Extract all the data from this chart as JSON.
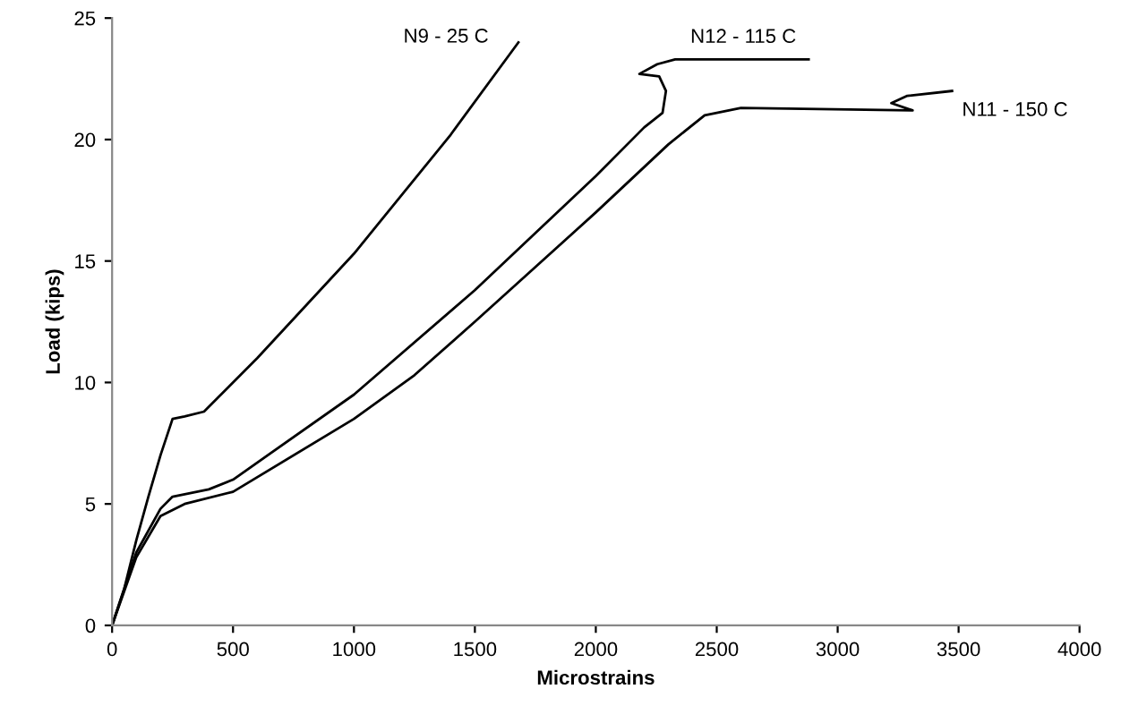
{
  "chart_data": {
    "type": "line",
    "xlabel": "Microstrains",
    "ylabel": "Load (kips)",
    "xlim": [
      0,
      4000
    ],
    "ylim": [
      0,
      25
    ],
    "xticks": [
      0,
      500,
      1000,
      1500,
      2000,
      2500,
      3000,
      3500,
      4000
    ],
    "yticks": [
      0,
      5,
      10,
      15,
      20,
      25
    ],
    "grid": false,
    "legend": false,
    "marker": "none",
    "line_style": "solid",
    "series": [
      {
        "name": "N9 - 25 C",
        "color": "#000000",
        "x": [
          0,
          50,
          100,
          150,
          200,
          250,
          300,
          380,
          450,
          600,
          1000,
          1400,
          1680
        ],
        "values": [
          0,
          1.5,
          3.5,
          5.3,
          7,
          8.5,
          8.6,
          8.8,
          9.5,
          11,
          15.3,
          20.2,
          24
        ]
      },
      {
        "name": "N12 - 115 C",
        "color": "#000000",
        "x": [
          0,
          100,
          200,
          250,
          400,
          500,
          1000,
          1500,
          2000,
          2200,
          2276,
          2290,
          2262,
          2180,
          2254,
          2328,
          2880
        ],
        "values": [
          0,
          3,
          4.8,
          5.3,
          5.6,
          6,
          9.5,
          13.8,
          18.5,
          20.5,
          21.1,
          22,
          22.6,
          22.7,
          23.1,
          23.3,
          23.3
        ]
      },
      {
        "name": "N11 - 150 C",
        "color": "#000000",
        "x": [
          0,
          100,
          200,
          300,
          500,
          1000,
          1250,
          1500,
          2000,
          2300,
          2450,
          2600,
          3310,
          3222,
          3288,
          3473
        ],
        "values": [
          0,
          2.8,
          4.5,
          5,
          5.5,
          8.5,
          10.3,
          12.5,
          17,
          19.8,
          21,
          21.3,
          21.2,
          21.5,
          21.8,
          22
        ]
      }
    ]
  }
}
